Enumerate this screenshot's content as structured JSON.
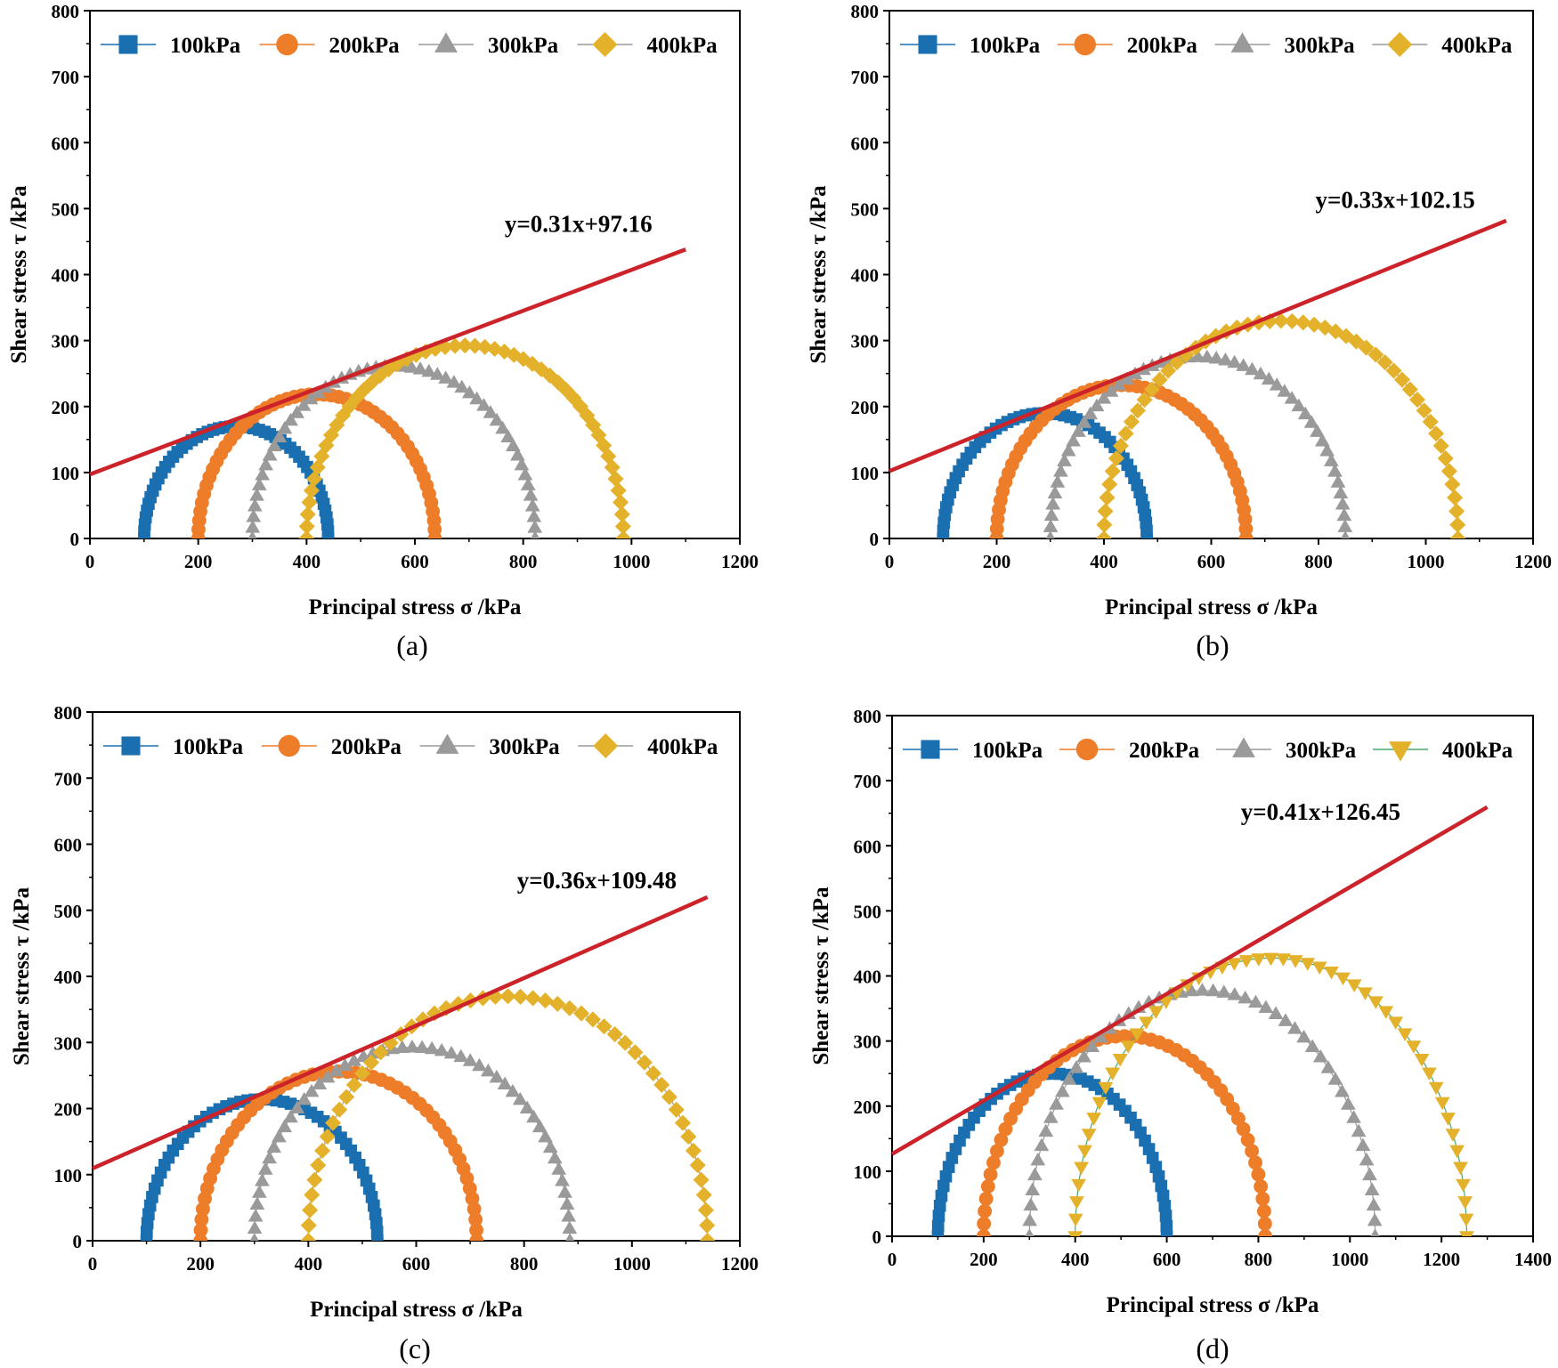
{
  "colors": {
    "s100": "#1a6fb0",
    "s200": "#ee7d2a",
    "s300": "#9a9a9a",
    "s400": "#e4b12a",
    "fit": "#cc2229",
    "line400_cd": "#4aa870"
  },
  "chart_data": [
    {
      "id": "a",
      "type": "scatter",
      "caption": "(a)",
      "title": "",
      "xlabel": "Principal stress σ /kPa",
      "ylabel": "Shear stress τ /kPa",
      "xlim": [
        0,
        1200
      ],
      "ylim": [
        0,
        800
      ],
      "xticks": [
        0,
        200,
        400,
        600,
        800,
        1000,
        1200
      ],
      "yticks": [
        0,
        100,
        200,
        300,
        400,
        500,
        600,
        700,
        800
      ],
      "legend": "top",
      "series": [
        {
          "name": "100kPa",
          "marker": "square",
          "sigma3": 100,
          "sigma1": 440
        },
        {
          "name": "200kPa",
          "marker": "circle",
          "sigma3": 200,
          "sigma1": 637
        },
        {
          "name": "300kPa",
          "marker": "triangle-up",
          "sigma3": 300,
          "sigma1": 822
        },
        {
          "name": "400kPa",
          "marker": "diamond",
          "sigma3": 400,
          "sigma1": 985
        }
      ],
      "fit_line": {
        "slope": 0.31,
        "intercept": 97.16,
        "x_range": [
          0,
          1100
        ],
        "equation": "y=0.31x+97.16"
      }
    },
    {
      "id": "b",
      "type": "scatter",
      "caption": "(b)",
      "title": "",
      "xlabel": "Principal stress σ /kPa",
      "ylabel": "Shear stress τ /kPa",
      "xlim": [
        0,
        1200
      ],
      "ylim": [
        0,
        800
      ],
      "xticks": [
        0,
        200,
        400,
        600,
        800,
        1000,
        1200
      ],
      "yticks": [
        0,
        100,
        200,
        300,
        400,
        500,
        600,
        700,
        800
      ],
      "legend": "top",
      "series": [
        {
          "name": "100kPa",
          "marker": "square",
          "sigma3": 100,
          "sigma1": 480
        },
        {
          "name": "200kPa",
          "marker": "circle",
          "sigma3": 200,
          "sigma1": 665
        },
        {
          "name": "300kPa",
          "marker": "triangle-up",
          "sigma3": 300,
          "sigma1": 850
        },
        {
          "name": "400kPa",
          "marker": "diamond",
          "sigma3": 400,
          "sigma1": 1060
        }
      ],
      "fit_line": {
        "slope": 0.33,
        "intercept": 102.15,
        "x_range": [
          0,
          1150
        ],
        "equation": "y=0.33x+102.15"
      }
    },
    {
      "id": "c",
      "type": "scatter",
      "caption": "(c)",
      "title": "",
      "xlabel": "Principal stress σ /kPa",
      "ylabel": "Shear stress τ /kPa",
      "xlim": [
        0,
        1200
      ],
      "ylim": [
        0,
        800
      ],
      "xticks": [
        0,
        200,
        400,
        600,
        800,
        1000,
        1200
      ],
      "yticks": [
        0,
        100,
        200,
        300,
        400,
        500,
        600,
        700,
        800
      ],
      "legend": "top",
      "series": [
        {
          "name": "100kPa",
          "marker": "square",
          "sigma3": 100,
          "sigma1": 528
        },
        {
          "name": "200kPa",
          "marker": "circle",
          "sigma3": 200,
          "sigma1": 712
        },
        {
          "name": "300kPa",
          "marker": "triangle-up",
          "sigma3": 300,
          "sigma1": 885
        },
        {
          "name": "400kPa",
          "marker": "diamond",
          "sigma3": 400,
          "sigma1": 1140
        }
      ],
      "fit_line": {
        "slope": 0.36,
        "intercept": 109.48,
        "x_range": [
          0,
          1140
        ],
        "equation": "y=0.36x+109.48"
      }
    },
    {
      "id": "d",
      "type": "scatter",
      "caption": "(d)",
      "title": "",
      "xlabel": "Principal stress σ /kPa",
      "ylabel": "Shear stress τ /kPa",
      "xlim": [
        0,
        1400
      ],
      "ylim": [
        0,
        800
      ],
      "xticks": [
        0,
        200,
        400,
        600,
        800,
        1000,
        1200,
        1400
      ],
      "yticks": [
        0,
        100,
        200,
        300,
        400,
        500,
        600,
        700,
        800
      ],
      "legend": "top",
      "series": [
        {
          "name": "100kPa",
          "marker": "square",
          "sigma3": 100,
          "sigma1": 600
        },
        {
          "name": "200kPa",
          "marker": "circle",
          "sigma3": 200,
          "sigma1": 815
        },
        {
          "name": "300kPa",
          "marker": "triangle-up",
          "sigma3": 300,
          "sigma1": 1055
        },
        {
          "name": "400kPa",
          "marker": "triangle-down",
          "sigma3": 400,
          "sigma1": 1255
        }
      ],
      "fit_line": {
        "slope": 0.41,
        "intercept": 126.45,
        "x_range": [
          0,
          1300
        ],
        "equation": "y=0.41x+126.45"
      }
    }
  ]
}
